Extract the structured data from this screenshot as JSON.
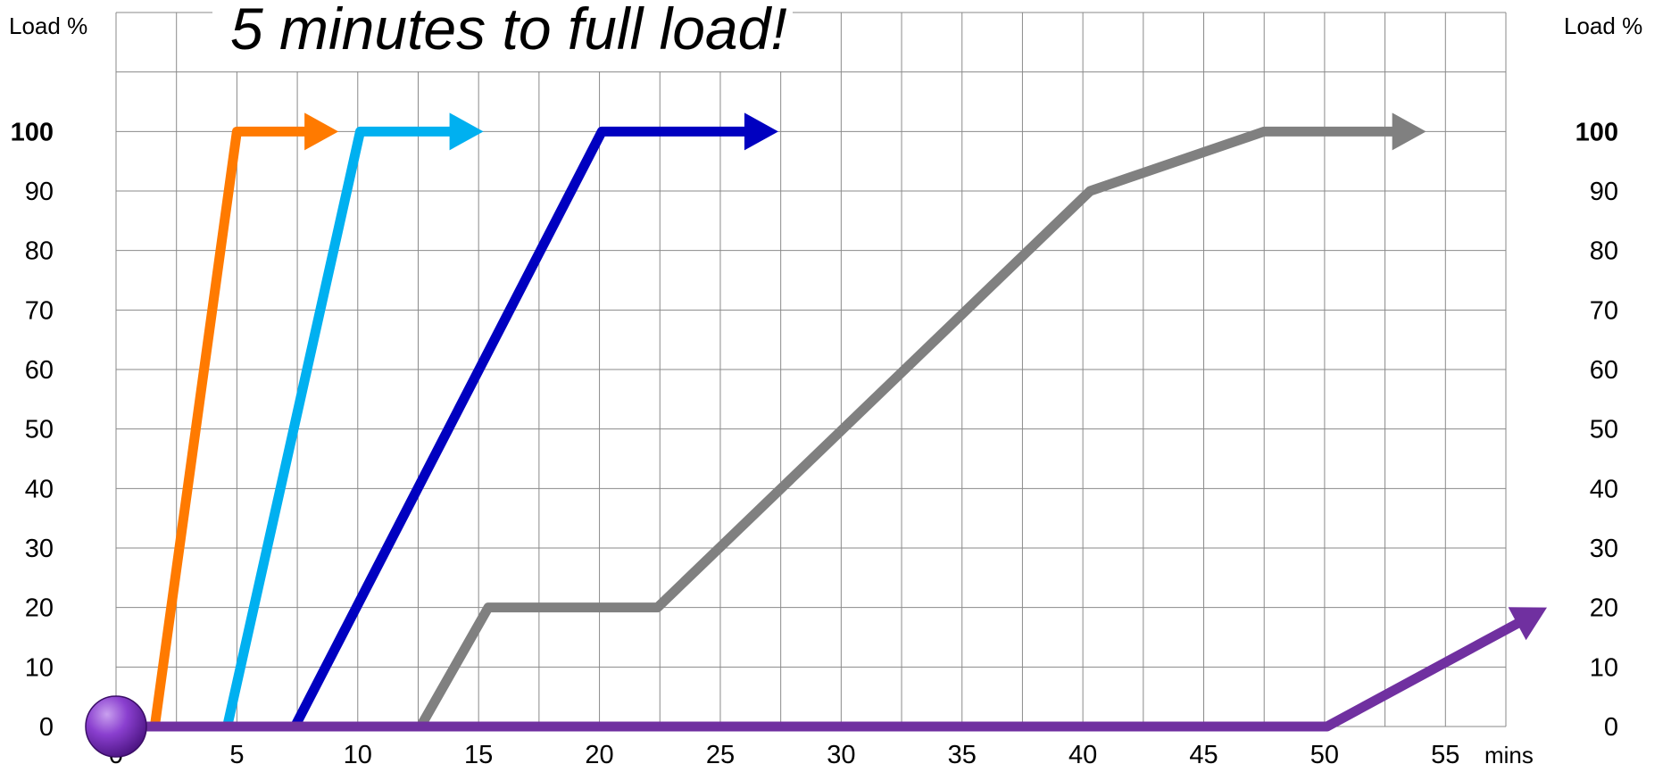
{
  "chart_data": {
    "type": "line",
    "title": "5 minutes to full load!",
    "ylabel_left": "Load %",
    "ylabel_right": "Load %",
    "xlabel": "mins",
    "x_ticks": [
      "0",
      "5",
      "10",
      "15",
      "20",
      "25",
      "30",
      "35",
      "40",
      "45",
      "50",
      "55"
    ],
    "y_ticks": [
      "0",
      "10",
      "20",
      "30",
      "40",
      "50",
      "60",
      "70",
      "80",
      "90",
      "100"
    ],
    "xlim": [
      0,
      57.5
    ],
    "ylim": [
      0,
      120
    ],
    "grid": true,
    "series": [
      {
        "color": "#ff7a00",
        "x": [
          1.6,
          5.0,
          9.2
        ],
        "y": [
          0,
          100,
          100
        ],
        "arrow_end": true
      },
      {
        "color": "#00b0f0",
        "x": [
          0,
          4.6,
          10.1,
          15.2
        ],
        "y": [
          0,
          0,
          100,
          100
        ],
        "arrow_end": true
      },
      {
        "color": "#0000c0",
        "x": [
          7.4,
          20.1,
          27.4
        ],
        "y": [
          0,
          100,
          100
        ],
        "arrow_end": true
      },
      {
        "color": "#808080",
        "x": [
          12.6,
          15.4,
          22.4,
          40.3,
          47.5,
          54.2
        ],
        "y": [
          0,
          20,
          20,
          90,
          100,
          100
        ],
        "arrow_end": true
      },
      {
        "color": "#7030a0",
        "x": [
          0,
          50.1,
          59.2
        ],
        "y": [
          0,
          0,
          20
        ],
        "arrow_end": true
      }
    ],
    "marker": {
      "color": "#7030a0",
      "x": 0,
      "y": 0
    }
  }
}
